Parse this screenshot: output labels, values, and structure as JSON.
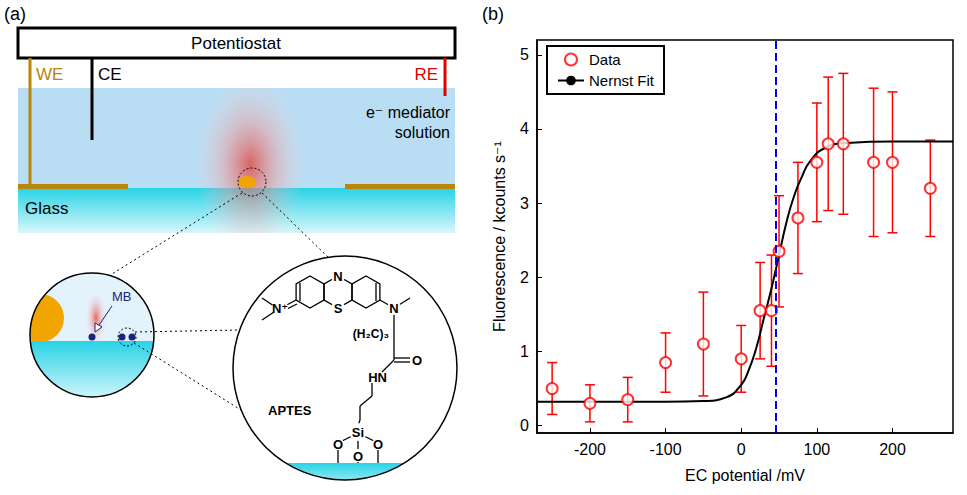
{
  "diagram": {
    "panel_label": "(a)",
    "instrument": "Potentiostat",
    "electrodes": {
      "working": "WE",
      "counter": "CE",
      "reference": "RE"
    },
    "solution": "e⁻ mediator solution",
    "substrate": "Glass",
    "probe": "MB",
    "linker": "APTES",
    "atoms": [
      "N",
      "S",
      "N⁺",
      "N",
      "(H₂C)₃",
      "HN",
      "O",
      "Si",
      "O",
      "O",
      "O"
    ]
  },
  "chart_data": {
    "type": "scatter",
    "panel_label": "(b)",
    "x_label": "EC potential /mV",
    "y_label": "Fluorescence / kcounts s⁻¹",
    "xlim": [
      -270,
      280
    ],
    "ylim": [
      -0.1,
      5.2
    ],
    "xticks": [
      -200,
      -100,
      0,
      100,
      200
    ],
    "yticks": [
      0,
      1,
      2,
      3,
      4,
      5
    ],
    "grid": false,
    "legend": "upper left",
    "series": [
      {
        "name": "Data",
        "type": "scatter",
        "marker": "open circle",
        "color": "#ff0000",
        "x": [
          -250,
          -200,
          -150,
          -100,
          -50,
          0,
          25,
          40,
          50,
          75,
          100,
          115,
          135,
          175,
          200,
          250
        ],
        "values": [
          0.5,
          0.3,
          0.35,
          0.85,
          1.1,
          0.9,
          1.55,
          1.55,
          2.35,
          2.8,
          3.55,
          3.8,
          3.8,
          3.55,
          3.55,
          3.2
        ],
        "errors": [
          0.35,
          0.25,
          0.3,
          0.4,
          0.7,
          0.45,
          0.65,
          0.75,
          0.75,
          0.75,
          0.8,
          0.9,
          0.95,
          1.0,
          0.95,
          0.65
        ]
      },
      {
        "name": "Nernst Fit",
        "type": "line",
        "line_style": "solid",
        "color": "#000000",
        "x": [
          -270,
          -100,
          -50,
          -20,
          0,
          10,
          20,
          30,
          40,
          45,
          50,
          60,
          70,
          80,
          90,
          110,
          140,
          200,
          280
        ],
        "values": [
          0.32,
          0.32,
          0.33,
          0.38,
          0.55,
          0.75,
          1.05,
          1.45,
          1.85,
          2.07,
          2.3,
          2.75,
          3.1,
          3.35,
          3.55,
          3.74,
          3.81,
          3.83,
          3.83
        ]
      }
    ],
    "reference_line": {
      "x": 45,
      "color": "#0000ff",
      "line_style": "dashed"
    }
  }
}
